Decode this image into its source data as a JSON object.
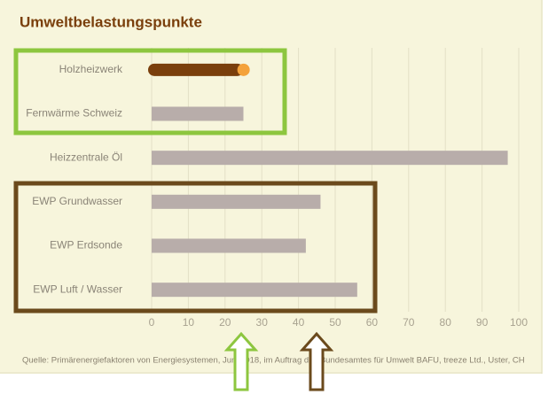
{
  "chart_data": {
    "type": "barh",
    "title": "Umweltbelastungspunkte",
    "categories": [
      "Holzheizwerk",
      "Fernwärme Schweiz",
      "Heizzentrale Öl",
      "EWP Grundwasser",
      "EWP Erdsonde",
      "EWP Luft / Wasser"
    ],
    "values": [
      26,
      25,
      97,
      46,
      42,
      56
    ],
    "colors": [
      "#7a3f0c",
      "#b8adaa",
      "#b8adaa",
      "#b8adaa",
      "#b8adaa",
      "#b8adaa"
    ],
    "cap_color": "#f4a23a",
    "xlim": [
      0,
      100
    ],
    "xticks": [
      0,
      10,
      20,
      30,
      40,
      50,
      60,
      70,
      80,
      90,
      100
    ],
    "grid": true,
    "source": "Quelle: Primärenergiefaktoren von Energiesystemen, Juni 2018, im Auftrag des Bundesamtes für Umwelt BAFU, treeze Ltd., Uster, CH"
  }
}
